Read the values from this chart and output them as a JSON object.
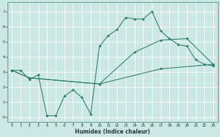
{
  "title": "",
  "xlabel": "Humidex (Indice chaleur)",
  "bg_color": "#cce8e4",
  "line_color": "#2d7a6e",
  "xlim": [
    -0.5,
    23.5
  ],
  "ylim": [
    -0.3,
    7.6
  ],
  "line1_x": [
    0,
    1,
    2,
    3,
    4,
    5,
    6,
    7,
    8,
    9,
    10,
    11,
    12,
    13,
    14,
    15,
    16,
    17,
    18,
    19,
    20,
    21,
    22,
    23
  ],
  "line1_y": [
    3.1,
    3.1,
    2.5,
    2.8,
    0.1,
    0.1,
    1.4,
    1.8,
    1.3,
    0.2,
    4.7,
    5.4,
    5.8,
    6.6,
    6.5,
    6.5,
    7.0,
    5.7,
    5.2,
    4.8,
    4.7,
    3.8,
    3.5,
    3.4
  ],
  "line2_x": [
    0,
    2,
    10,
    17,
    23
  ],
  "line2_y": [
    3.1,
    2.6,
    2.2,
    3.2,
    3.5
  ],
  "line3_x": [
    0,
    2,
    10,
    14,
    17,
    20,
    23
  ],
  "line3_y": [
    3.1,
    2.6,
    2.2,
    4.3,
    5.1,
    5.2,
    3.5
  ],
  "xticks": [
    0,
    1,
    2,
    3,
    4,
    5,
    6,
    7,
    8,
    9,
    10,
    11,
    12,
    13,
    14,
    15,
    16,
    17,
    18,
    19,
    20,
    21,
    22,
    23
  ],
  "yticks": [
    0,
    1,
    2,
    3,
    4,
    5,
    6,
    7
  ]
}
